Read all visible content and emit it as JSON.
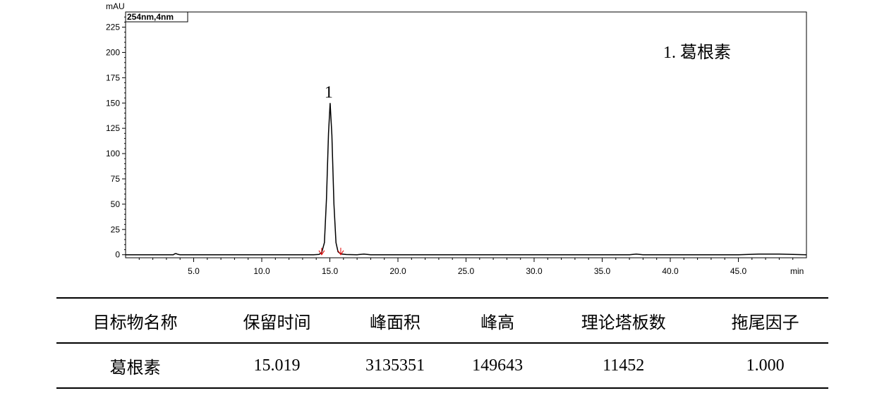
{
  "chart_data": {
    "type": "line",
    "y_unit": "mAU",
    "x_unit": "min",
    "wavelength_label": "254nm,4nm",
    "xlim": [
      0,
      50
    ],
    "ylim": [
      -3,
      240
    ],
    "x_ticks": [
      5.0,
      10.0,
      15.0,
      20.0,
      25.0,
      30.0,
      35.0,
      40.0,
      45.0
    ],
    "x_tick_labels": [
      "5.0",
      "10.0",
      "15.0",
      "20.0",
      "25.0",
      "30.0",
      "35.0",
      "40.0",
      "45.0"
    ],
    "y_ticks": [
      0,
      25,
      50,
      75,
      100,
      125,
      150,
      175,
      200,
      225
    ],
    "y_tick_labels": [
      "0",
      "25",
      "50",
      "75",
      "100",
      "125",
      "150",
      "175",
      "200",
      "225"
    ],
    "series": [
      {
        "x": [
          0,
          3.5,
          3.6,
          3.7,
          3.8,
          3.9,
          4.0,
          13.8,
          14.2,
          14.4,
          14.6,
          14.75,
          14.9,
          15.02,
          15.15,
          15.3,
          15.45,
          15.6,
          15.8,
          16.2,
          17.0,
          17.5,
          18.0,
          30.0,
          37.0,
          37.5,
          38.0,
          45.0,
          46.5,
          48.0,
          50.0
        ],
        "y": [
          0,
          0,
          0.8,
          1.2,
          0.6,
          0.2,
          0,
          0,
          0.3,
          2,
          12,
          55,
          120,
          150,
          118,
          50,
          12,
          3,
          0.8,
          0.2,
          0,
          0.6,
          0,
          0,
          0,
          0.6,
          0,
          0,
          0.6,
          0.6,
          0
        ]
      }
    ],
    "peak_markers": [
      {
        "label": "1",
        "x": 15.02,
        "y": 150
      }
    ],
    "integration_marks": [
      14.4,
      15.8
    ],
    "legend": "1.  葛根素"
  },
  "table": {
    "headers": [
      "目标物名称",
      "保留时间",
      "峰面积",
      "峰高",
      "理论塔板数",
      "拖尾因子"
    ],
    "rows": [
      [
        "葛根素",
        "15.019",
        "3135351",
        "149643",
        "11452",
        "1.000"
      ]
    ]
  }
}
